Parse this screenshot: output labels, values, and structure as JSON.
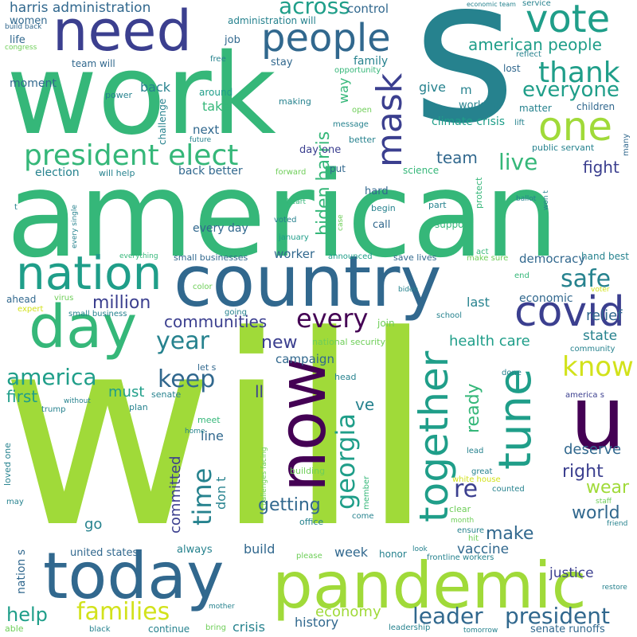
{
  "palette": {
    "background": "#ffffff",
    "purple": "#440154",
    "indigo": "#3b3f8f",
    "blue": "#31688e",
    "teal": "#26828e",
    "green": "#1f9e89",
    "emerald": "#35b779",
    "lime": "#6ece58",
    "yellowgreen": "#a0da39",
    "yellow": "#d2e21b"
  },
  "words": {
    "will": "will",
    "american": "american",
    "work": "work",
    "s_big": "s",
    "country": "country",
    "today": "today",
    "pandemic": "pandemic",
    "now": "now",
    "need": "need",
    "day": "day",
    "u": "u",
    "nation": "nation",
    "people": "people",
    "covid": "covid",
    "together": "together",
    "tune": "tune",
    "one": "one",
    "vote": "vote",
    "mask": "mask",
    "president_elect": "president elect",
    "thank": "thank",
    "georgia": "georgia",
    "know": "know",
    "leader": "leader",
    "president": "president",
    "time": "time",
    "families": "families",
    "keep": "keep",
    "biden_harris": "biden harris",
    "re": "re",
    "america": "america",
    "american_people": "american people",
    "everyone": "everyone",
    "every": "every",
    "year": "year",
    "safe": "safe",
    "across": "across",
    "live": "live",
    "million": "million",
    "communities": "communities",
    "help": "help",
    "getting": "getting",
    "ready": "ready",
    "harris_administration": "harris administration",
    "health_care": "health care",
    "right": "right",
    "wear": "wear",
    "world": "world",
    "make": "make",
    "fight": "fight",
    "economy": "economy",
    "committed": "committed",
    "team": "team",
    "new": "new",
    "first": "first",
    "must": "must",
    "deserve": "deserve",
    "vaccine": "vaccine",
    "justice": "justice",
    "relief": "relief",
    "state": "state",
    "ve": "ve",
    "ll": "ll",
    "don_t": "don t",
    "last": "last",
    "economic": "economic",
    "democracy": "democracy",
    "week": "week",
    "build": "build",
    "history": "history",
    "crisis": "crisis",
    "line": "line",
    "control": "control",
    "take": "take",
    "go": "go",
    "worker": "worker",
    "campaign": "campaign",
    "give": "give",
    "m": "m",
    "way": "way",
    "climate_crisis": "climate crisis",
    "next": "next",
    "back_better": "back better",
    "day_one": "day one",
    "working": "working",
    "back": "back",
    "moment": "moment",
    "family": "family",
    "election": "election",
    "every_day": "every day",
    "nation_s": "nation s",
    "united_states": "united states",
    "senate_runoffs": "senate runoffs",
    "always": "always",
    "hard": "hard",
    "call": "call",
    "women": "women",
    "life": "life",
    "job": "job",
    "stay": "stay",
    "children": "children",
    "matter": "matter",
    "lost": "lost",
    "administration_will": "administration will",
    "team_will": "team will",
    "challenge": "challenge",
    "around": "around",
    "power": "power",
    "making": "making",
    "message": "message",
    "open": "open",
    "better": "better",
    "protect": "protect",
    "science": "science",
    "put": "put",
    "support": "support",
    "begin": "begin",
    "part": "part",
    "hand": "hand",
    "best": "best",
    "public_servant": "public servant",
    "many": "many",
    "lift": "lift",
    "reflect": "reflect",
    "service": "service",
    "economic_team": "economic team",
    "opportunity": "opportunity",
    "free": "free",
    "build_back": "build back",
    "congress": "congress",
    "will_help": "will help",
    "forward": "forward",
    "heart": "heart",
    "voted": "voted",
    "january": "january",
    "case": "case",
    "act": "act",
    "ballot": "ballot",
    "won_t": "won t",
    "small_businesses": "small businesses",
    "everything": "everything",
    "announced": "announced",
    "save_lives": "save lives",
    "make_sure": "make sure",
    "end": "end",
    "voter": "voter",
    "color": "color",
    "biden": "biden",
    "ahead": "ahead",
    "virus": "virus",
    "expert": "expert",
    "small_business": "small business",
    "going": "going",
    "join": "join",
    "school": "school",
    "national_security": "national security",
    "community": "community",
    "let_s": "let s",
    "head": "head",
    "done": "done",
    "america_s": "america s",
    "senate": "senate",
    "trump": "trump",
    "without": "without",
    "plan": "plan",
    "meet": "meet",
    "home": "home",
    "challenges_facing": "challenges facing",
    "building": "building",
    "member": "member",
    "lead": "lead",
    "great": "great",
    "white_house": "white house",
    "counted": "counted",
    "staff": "staff",
    "clear": "clear",
    "office": "office",
    "come": "come",
    "friend": "friend",
    "month": "month",
    "ensure": "ensure",
    "hit": "hit",
    "honor": "honor",
    "please": "please",
    "look": "look",
    "frontline_workers": "frontline workers",
    "restore": "restore",
    "tomorrow": "tomorrow",
    "leadership": "leadership",
    "mother": "mother",
    "bring": "bring",
    "continue": "continue",
    "black": "black",
    "able": "able",
    "loved_one": "loved one",
    "may": "may",
    "every_single": "every single",
    "t": "t",
    "future": "future"
  }
}
